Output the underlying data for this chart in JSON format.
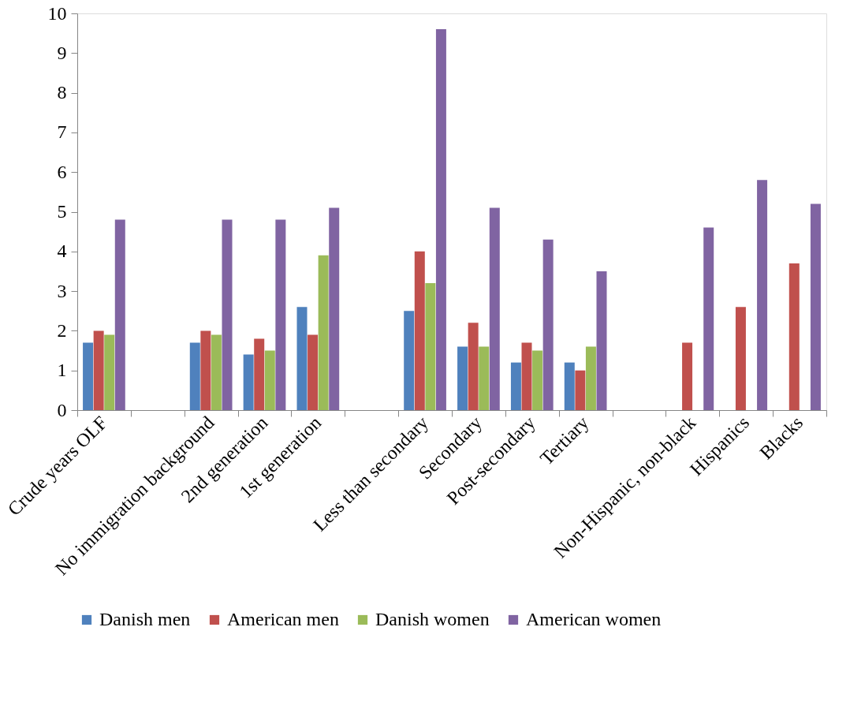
{
  "chart_data": {
    "type": "bar",
    "categories": [
      "Crude years OLF",
      null,
      "No immigration background",
      "2nd generation",
      "1st generation",
      null,
      "Less than secondary",
      "Secondary",
      "Post-secondary",
      "Tertiary",
      null,
      "Non-Hispanic, non-black",
      "Hispanics",
      "Blacks"
    ],
    "series": [
      {
        "name": "Danish men",
        "color": "#4f81bd",
        "values": [
          1.7,
          null,
          1.7,
          1.4,
          2.6,
          null,
          2.5,
          1.6,
          1.2,
          1.2,
          null,
          null,
          null,
          null
        ]
      },
      {
        "name": "American men",
        "color": "#c0504d",
        "values": [
          2.0,
          null,
          2.0,
          1.8,
          1.9,
          null,
          4.0,
          2.2,
          1.7,
          1.0,
          null,
          1.7,
          2.6,
          3.7
        ]
      },
      {
        "name": "Danish women",
        "color": "#9bbb59",
        "values": [
          1.9,
          null,
          1.9,
          1.5,
          3.9,
          null,
          3.2,
          1.6,
          1.5,
          1.6,
          null,
          null,
          null,
          null
        ]
      },
      {
        "name": "American women",
        "color": "#8064a2",
        "values": [
          4.8,
          null,
          4.8,
          4.8,
          5.1,
          null,
          9.6,
          5.1,
          4.3,
          3.5,
          null,
          4.6,
          5.8,
          5.2
        ]
      }
    ],
    "ylim": [
      0,
      10
    ],
    "yticks": [
      0,
      1,
      2,
      3,
      4,
      5,
      6,
      7,
      8,
      9,
      10
    ],
    "grid": false,
    "legend": "bottom"
  }
}
